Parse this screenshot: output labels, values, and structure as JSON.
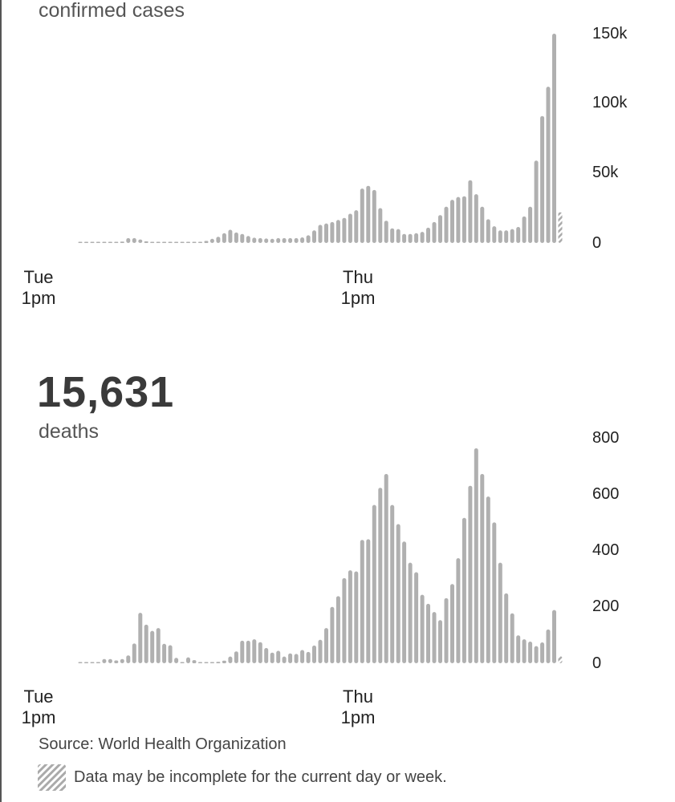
{
  "chart_data": [
    {
      "type": "bar",
      "title": "confirmed cases",
      "ylim": [
        0,
        150000
      ],
      "yticks": [
        "150k",
        "100k",
        "50k",
        "0"
      ],
      "ytick_values": [
        150000,
        100000,
        50000,
        0
      ],
      "xticks": [
        {
          "line1": "Tue",
          "line2": "1pm"
        },
        {
          "line1": "Thu",
          "line2": "1pm"
        }
      ],
      "last_bar_incomplete": true,
      "values": [
        100,
        100,
        100,
        200,
        300,
        500,
        800,
        1000,
        3500,
        3500,
        2500,
        1200,
        800,
        500,
        300,
        300,
        300,
        300,
        500,
        600,
        800,
        1500,
        3000,
        4500,
        7000,
        9500,
        7500,
        6500,
        5000,
        3800,
        3500,
        3200,
        3000,
        3500,
        3500,
        3500,
        3500,
        4000,
        5500,
        9000,
        13000,
        14000,
        15000,
        16500,
        18000,
        21000,
        23500,
        39000,
        41000,
        38000,
        25000,
        16000,
        10500,
        10000,
        6500,
        6500,
        7000,
        8000,
        11000,
        15000,
        20000,
        26000,
        31000,
        33000,
        33500,
        45000,
        35000,
        26000,
        17000,
        12000,
        9000,
        9000,
        10000,
        11500,
        19000,
        26000,
        59000,
        91000,
        112000,
        150000,
        22000
      ]
    },
    {
      "type": "bar",
      "title": "deaths",
      "total": "15,631",
      "ylim": [
        0,
        800
      ],
      "yticks": [
        "800",
        "600",
        "400",
        "200",
        "0"
      ],
      "ytick_values": [
        800,
        600,
        400,
        200,
        0
      ],
      "xticks": [
        {
          "line1": "Tue",
          "line2": "1pm"
        },
        {
          "line1": "Thu",
          "line2": "1pm"
        }
      ],
      "last_bar_incomplete": true,
      "values": [
        3,
        0,
        3,
        0,
        15,
        15,
        10,
        15,
        28,
        70,
        179,
        137,
        115,
        125,
        69,
        64,
        19,
        4,
        21,
        11,
        2,
        2,
        2,
        5,
        9,
        24,
        42,
        80,
        80,
        85,
        75,
        54,
        38,
        44,
        24,
        35,
        33,
        47,
        40,
        63,
        83,
        125,
        200,
        238,
        302,
        330,
        326,
        438,
        440,
        562,
        623,
        672,
        562,
        494,
        432,
        357,
        323,
        243,
        211,
        182,
        153,
        231,
        281,
        373,
        516,
        630,
        763,
        672,
        592,
        500,
        357,
        248,
        177,
        99,
        85,
        77,
        61,
        74,
        120,
        189,
        25
      ]
    }
  ],
  "footer": {
    "source": "Source:  World Health Organization",
    "note": "Data may be incomplete for the current day or week."
  },
  "colors": {
    "bar": "#b0b0b0",
    "text": "#444444"
  }
}
